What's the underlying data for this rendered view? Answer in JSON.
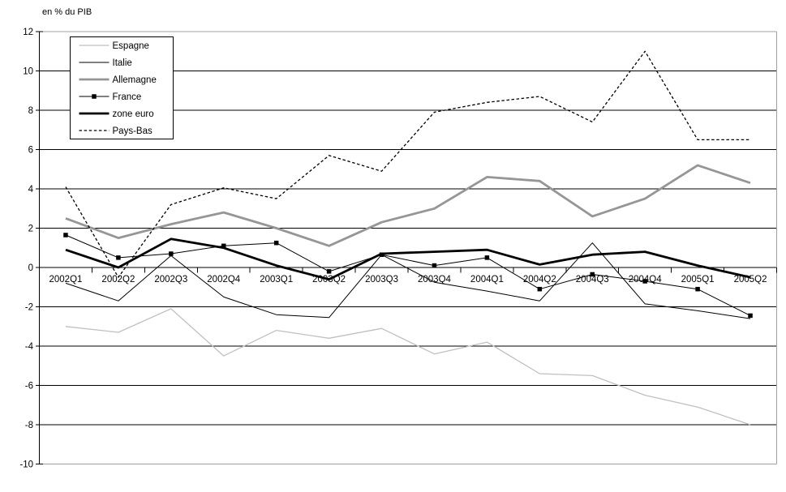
{
  "chart_data": {
    "type": "line",
    "title": "en % du PIB",
    "categories": [
      "2002Q1",
      "2002Q2",
      "2002Q3",
      "2002Q4",
      "2003Q1",
      "2003Q2",
      "2003Q3",
      "2003Q4",
      "2004Q1",
      "2004Q2",
      "2004Q3",
      "2004Q4",
      "2005Q1",
      "2005Q2"
    ],
    "series": [
      {
        "name": "Espagne",
        "color": "#C0C0C0",
        "width": 1.3,
        "dash": "",
        "marker": "none",
        "values": [
          -3.0,
          -3.3,
          -2.1,
          -4.5,
          -3.2,
          -3.6,
          -3.1,
          -4.4,
          -3.8,
          -5.4,
          -5.5,
          -6.5,
          -7.1,
          -8.0
        ]
      },
      {
        "name": "Italie",
        "color": "#000000",
        "width": 1.0,
        "dash": "",
        "marker": "none",
        "values": [
          -0.8,
          -1.7,
          0.6,
          -1.5,
          -2.4,
          -2.55,
          0.65,
          -0.75,
          -1.2,
          -1.7,
          1.25,
          -1.85,
          -2.2,
          -2.6
        ]
      },
      {
        "name": "Allemagne",
        "color": "#969696",
        "width": 2.8,
        "dash": "",
        "marker": "none",
        "values": [
          2.5,
          1.5,
          2.2,
          2.8,
          2.0,
          1.1,
          2.3,
          3.0,
          4.6,
          4.4,
          2.6,
          3.5,
          5.2,
          4.3
        ]
      },
      {
        "name": "France",
        "color": "#000000",
        "width": 1.0,
        "dash": "",
        "marker": "square",
        "values": [
          1.65,
          0.5,
          0.7,
          1.1,
          1.25,
          -0.2,
          0.65,
          0.1,
          0.5,
          -1.1,
          -0.35,
          -0.7,
          -1.1,
          -2.45
        ]
      },
      {
        "name": "zone euro",
        "color": "#000000",
        "width": 2.8,
        "dash": "",
        "marker": "none",
        "values": [
          0.9,
          0.0,
          1.45,
          1.0,
          0.1,
          -0.6,
          0.7,
          0.8,
          0.9,
          0.15,
          0.65,
          0.8,
          0.1,
          -0.5
        ]
      },
      {
        "name": "Pays-Bas",
        "color": "#000000",
        "width": 1.3,
        "dash": "3.5,2.6",
        "marker": "none",
        "values": [
          4.1,
          -0.5,
          3.2,
          4.05,
          3.5,
          5.7,
          4.9,
          7.9,
          8.4,
          8.7,
          7.4,
          11.0,
          6.5,
          6.5
        ]
      }
    ],
    "ylim": [
      -10,
      12
    ],
    "ytick_step": 2,
    "y_tick_labels": [
      "12",
      "10",
      "8",
      "6",
      "4",
      "2",
      "0",
      "-2",
      "-4",
      "-6",
      "-8",
      "-10"
    ],
    "xlabel": "",
    "ylabel": "",
    "grid": true,
    "legend_position": "top-left-inside",
    "legend_entries": [
      "Espagne",
      "Italie",
      "Allemagne",
      "France",
      "zone euro",
      "Pays-Bas"
    ],
    "colors": {
      "gridline": "#000000",
      "axis": "#000000",
      "plot_border": "#A0A0A0",
      "background": "#FFFFFF",
      "legend_border": "#000000",
      "legend_background": "#FFFFFF"
    }
  }
}
